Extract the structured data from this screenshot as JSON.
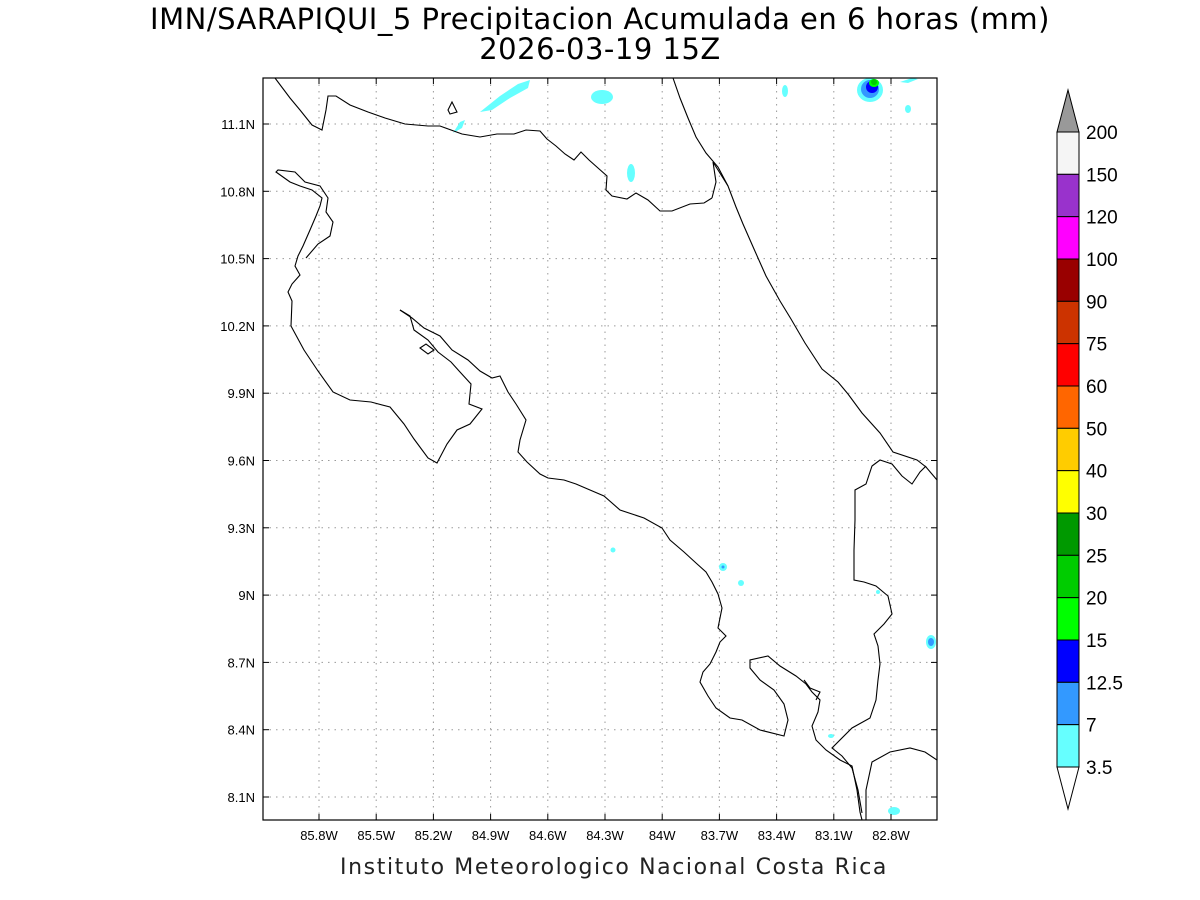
{
  "title": {
    "line1": "IMN/SARAPIQUI_5 Precipitacion Acumulada en 6 horas (mm)",
    "line2": "2026-03-19 15Z"
  },
  "footer": "Instituto Meteorologico Nacional Costa Rica",
  "map": {
    "region": "Costa Rica",
    "lon_range": [
      -86.0,
      -82.5
    ],
    "lat_range": [
      8.0,
      11.3
    ],
    "lon_ticks": [
      "85.8W",
      "85.5W",
      "85.2W",
      "84.9W",
      "84.6W",
      "84.3W",
      "84W",
      "83.7W",
      "83.4W",
      "83.1W",
      "82.8W"
    ],
    "lat_ticks": [
      "11.1N",
      "10.8N",
      "10.5N",
      "10.2N",
      "9.9N",
      "9.6N",
      "9.3N",
      "9N",
      "8.7N",
      "8.4N",
      "8.1N"
    ],
    "grid": true
  },
  "colorbar": {
    "labels": [
      "200",
      "150",
      "120",
      "100",
      "90",
      "75",
      "60",
      "50",
      "40",
      "30",
      "25",
      "20",
      "15",
      "12.5",
      "7",
      "3.5"
    ],
    "colors": [
      "#f5f5f5",
      "#9932cc",
      "#ff00ff",
      "#990000",
      "#cc3300",
      "#ff0000",
      "#ff6600",
      "#ffcc00",
      "#ffff00",
      "#009900",
      "#00cc00",
      "#00ff00",
      "#0000ff",
      "#3399ff",
      "#66ffff"
    ],
    "over_color": "#999999",
    "under_color": "#ffffff"
  }
}
